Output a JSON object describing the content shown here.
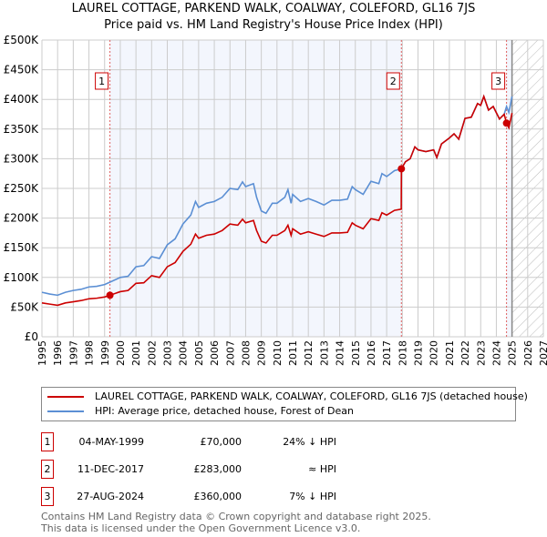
{
  "chart_data": {
    "type": "line",
    "title": "LAUREL COTTAGE, PARKEND WALK, COALWAY, COLEFORD, GL16 7JS",
    "subtitle": "Price paid vs. HM Land Registry's House Price Index (HPI)",
    "xlim": [
      1995,
      2027
    ],
    "ylim": [
      0,
      500000
    ],
    "x_ticks": [
      "1995",
      "1996",
      "1997",
      "1998",
      "1999",
      "2000",
      "2001",
      "2002",
      "2003",
      "2004",
      "2005",
      "2006",
      "2007",
      "2008",
      "2009",
      "2010",
      "2011",
      "2012",
      "2013",
      "2014",
      "2015",
      "2016",
      "2017",
      "2018",
      "2019",
      "2020",
      "2021",
      "2022",
      "2023",
      "2024",
      "2025",
      "2026",
      "2027"
    ],
    "y_ticks": [
      {
        "v": 0,
        "l": "£0"
      },
      {
        "v": 50000,
        "l": "£50K"
      },
      {
        "v": 100000,
        "l": "£100K"
      },
      {
        "v": 150000,
        "l": "£150K"
      },
      {
        "v": 200000,
        "l": "£200K"
      },
      {
        "v": 250000,
        "l": "£250K"
      },
      {
        "v": 300000,
        "l": "£300K"
      },
      {
        "v": 350000,
        "l": "£350K"
      },
      {
        "v": 400000,
        "l": "£400K"
      },
      {
        "v": 450000,
        "l": "£450K"
      },
      {
        "v": 500000,
        "l": "£500K"
      }
    ],
    "grid": true,
    "forecast_start": 2025.0,
    "series": [
      {
        "name": "LAUREL COTTAGE, PARKEND WALK, COALWAY, COLEFORD, GL16 7JS (detached house)",
        "color": "#cc0000",
        "x": [
          1995,
          1995.5,
          1996,
          1996.5,
          1997,
          1997.5,
          1998,
          1998.5,
          1999,
          1999.34,
          2000,
          2000.5,
          2001,
          2001.5,
          2002,
          2002.5,
          2003,
          2003.5,
          2004,
          2004.5,
          2004.8,
          2005,
          2005.5,
          2006,
          2006.5,
          2007,
          2007.5,
          2007.8,
          2008,
          2008.5,
          2008.7,
          2009,
          2009.3,
          2009.7,
          2010,
          2010.5,
          2010.7,
          2010.9,
          2011,
          2011.5,
          2012,
          2012.5,
          2013,
          2013.5,
          2014,
          2014.5,
          2014.8,
          2015,
          2015.5,
          2016,
          2016.5,
          2016.7,
          2017,
          2017.5,
          2017.93,
          2017.94,
          2018.2,
          2018.5,
          2018.8,
          2019,
          2019.5,
          2020,
          2020.2,
          2020.5,
          2021,
          2021.3,
          2021.6,
          2022,
          2022.4,
          2022.8,
          2023,
          2023.2,
          2023.5,
          2023.8,
          2024.2,
          2024.5,
          2024.65,
          2024.8,
          2025.0
        ],
        "y": [
          57,
          55,
          53,
          57,
          59,
          61,
          64,
          65,
          67,
          70,
          76,
          78,
          90,
          91,
          103,
          100,
          118,
          125,
          144,
          156,
          173,
          166,
          171,
          173,
          179,
          190,
          188,
          198,
          192,
          196,
          179,
          161,
          158,
          171,
          171,
          179,
          188,
          171,
          182,
          173,
          177,
          173,
          169,
          175,
          175,
          176,
          192,
          188,
          182,
          199,
          196,
          209,
          205,
          213,
          215,
          283,
          295,
          300,
          320,
          315,
          312,
          315,
          302,
          325,
          335,
          342,
          333,
          368,
          370,
          393,
          390,
          405,
          382,
          388,
          367,
          375,
          360,
          352,
          377
        ]
      },
      {
        "name": "HPI: Average price, detached house, Forest of Dean",
        "color": "#5b8fd4",
        "x": [
          1995,
          1995.5,
          1996,
          1996.5,
          1997,
          1997.5,
          1998,
          1998.5,
          1999,
          1999.34,
          2000,
          2000.5,
          2001,
          2001.5,
          2002,
          2002.5,
          2003,
          2003.5,
          2004,
          2004.5,
          2004.8,
          2005,
          2005.5,
          2006,
          2006.5,
          2007,
          2007.5,
          2007.8,
          2008,
          2008.5,
          2008.7,
          2009,
          2009.3,
          2009.7,
          2010,
          2010.5,
          2010.7,
          2010.9,
          2011,
          2011.5,
          2012,
          2012.5,
          2013,
          2013.5,
          2014,
          2014.5,
          2014.8,
          2015,
          2015.5,
          2016,
          2016.5,
          2016.7,
          2017,
          2017.5,
          2017.94,
          2018.2,
          2018.5,
          2018.8,
          2019,
          2019.5,
          2020,
          2020.2,
          2020.5,
          2021,
          2021.3,
          2021.6,
          2022,
          2022.4,
          2022.8,
          2023,
          2023.2,
          2023.5,
          2023.8,
          2024.2,
          2024.5,
          2024.65,
          2024.8,
          2025.0
        ],
        "y": [
          75,
          72,
          70,
          75,
          78,
          80,
          84,
          85,
          88,
          92,
          100,
          102,
          118,
          120,
          135,
          132,
          155,
          165,
          190,
          205,
          228,
          218,
          225,
          228,
          235,
          250,
          248,
          261,
          253,
          258,
          235,
          212,
          208,
          225,
          225,
          235,
          248,
          225,
          240,
          228,
          233,
          228,
          222,
          230,
          230,
          232,
          253,
          248,
          240,
          262,
          258,
          275,
          270,
          280,
          283,
          295,
          300,
          320,
          315,
          312,
          315,
          302,
          325,
          335,
          342,
          333,
          368,
          370,
          393,
          390,
          405,
          382,
          388,
          367,
          375,
          388,
          378,
          405
        ]
      }
    ],
    "y_unit": 1000,
    "sales": [
      {
        "label": "1",
        "x": 1999.34,
        "price": 70000
      },
      {
        "label": "2",
        "x": 2017.94,
        "price": 283000
      },
      {
        "label": "3",
        "x": 2024.65,
        "price": 360000
      }
    ]
  },
  "legend": {
    "property": "LAUREL COTTAGE, PARKEND WALK, COALWAY, COLEFORD, GL16 7JS (detached house)",
    "hpi": "HPI: Average price, detached house, Forest of Dean"
  },
  "sales_table": [
    {
      "num": "1",
      "date": "04-MAY-1999",
      "price": "£70,000",
      "diff": "24% ↓ HPI"
    },
    {
      "num": "2",
      "date": "11-DEC-2017",
      "price": "£283,000",
      "diff": "≈ HPI"
    },
    {
      "num": "3",
      "date": "27-AUG-2024",
      "price": "£360,000",
      "diff": "7% ↓ HPI"
    }
  ],
  "footer": {
    "line1": "Contains HM Land Registry data © Crown copyright and database right 2025.",
    "line2": "This data is licensed under the Open Government Licence v3.0."
  }
}
